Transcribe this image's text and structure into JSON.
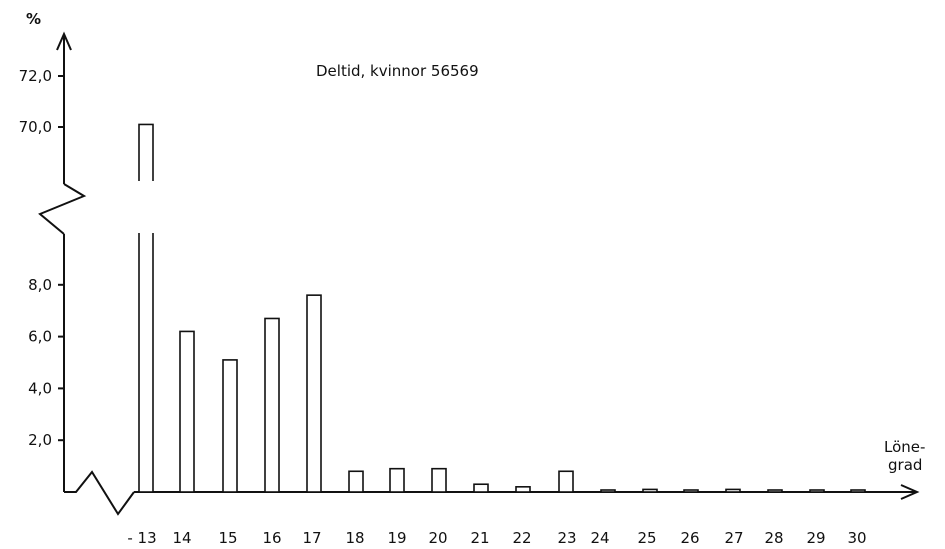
{
  "chart_data": {
    "type": "bar",
    "title": "Deltid, kvinnor  56569",
    "ylabel": "%",
    "xlabel_line1": "Löne-",
    "xlabel_line2": "grad",
    "y_ticks": [
      "2,0",
      "4,0",
      "6,0",
      "8,0",
      "70,0",
      "72,0"
    ],
    "y_break": true,
    "ylim_lower": [
      0,
      8
    ],
    "ylim_upper": [
      70,
      72
    ],
    "categories": [
      "- 13",
      "14",
      "15",
      "16",
      "17",
      "18",
      "19",
      "20",
      "21",
      "22",
      "23",
      "24",
      "25",
      "26",
      "27",
      "28",
      "29",
      "30"
    ],
    "values": [
      70.1,
      6.2,
      5.1,
      6.7,
      7.6,
      0.8,
      0.9,
      0.9,
      0.3,
      0.2,
      0.8,
      0.05,
      0.1,
      0.05,
      0.1,
      0.05,
      0.05,
      0.05
    ]
  }
}
